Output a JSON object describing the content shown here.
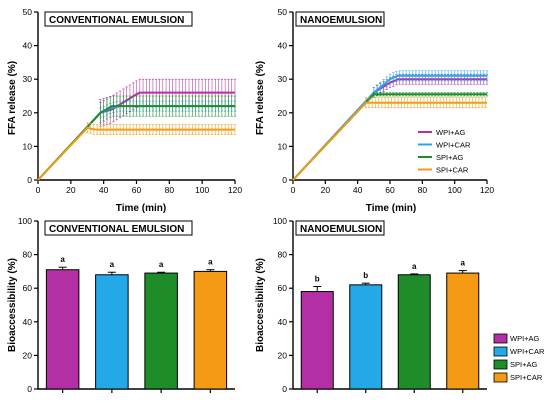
{
  "colors": {
    "WPI+AG": "#b42fa6",
    "WPI+CAR": "#23a8e8",
    "SPI+AG": "#1f8c2a",
    "SPI+CAR": "#f59a15"
  },
  "chart_data": [
    {
      "type": "line",
      "title": "CONVENTIONAL EMULSION",
      "xlabel": "Time (min)",
      "ylabel": "FFA release (%)",
      "xlim": [
        0,
        120
      ],
      "ylim": [
        0,
        50
      ],
      "xticks": [
        0,
        20,
        40,
        60,
        80,
        100,
        120
      ],
      "yticks": [
        0,
        10,
        20,
        30,
        40,
        50
      ],
      "series": [
        {
          "name": "WPI+AG",
          "x": [
            0,
            38,
            45,
            50,
            55,
            60,
            62,
            70,
            80,
            90,
            100,
            110,
            120
          ],
          "y": [
            0,
            20,
            21,
            22.5,
            24,
            25.5,
            26,
            26,
            26,
            26,
            26,
            26,
            26
          ],
          "err": 4
        },
        {
          "name": "WPI+CAR",
          "x": [
            0,
            38,
            45,
            50,
            55,
            60,
            62,
            70,
            80,
            90,
            100,
            110,
            120
          ],
          "y": [
            0,
            20,
            21.5,
            22,
            22,
            22,
            22,
            22,
            22,
            22,
            22,
            22,
            22
          ],
          "err": 1.5
        },
        {
          "name": "SPI+AG",
          "x": [
            0,
            38,
            45,
            50,
            55,
            60,
            62,
            70,
            80,
            90,
            100,
            110,
            120
          ],
          "y": [
            0,
            20,
            22,
            22,
            22,
            22,
            22,
            22,
            22,
            22,
            22,
            22,
            22
          ],
          "err": 3
        },
        {
          "name": "SPI+CAR",
          "x": [
            0,
            30,
            35,
            40,
            50,
            60,
            70,
            80,
            90,
            100,
            110,
            120
          ],
          "y": [
            0,
            15.5,
            15,
            15,
            15,
            15,
            15,
            15,
            15,
            15,
            15,
            15
          ],
          "err": 1.5
        }
      ]
    },
    {
      "type": "line",
      "title": "NANOEMULSION",
      "xlabel": "Time (min)",
      "ylabel": "FFA release (%)",
      "xlim": [
        0,
        120
      ],
      "ylim": [
        0,
        50
      ],
      "xticks": [
        0,
        20,
        40,
        60,
        80,
        100,
        120
      ],
      "yticks": [
        0,
        10,
        20,
        30,
        40,
        50
      ],
      "legend": [
        "WPI+AG",
        "WPI+CAR",
        "SPI+AG",
        "SPI+CAR"
      ],
      "legend_position": "right",
      "series": [
        {
          "name": "WPI+AG",
          "x": [
            0,
            50,
            55,
            60,
            65,
            70,
            80,
            90,
            100,
            110,
            120
          ],
          "y": [
            0,
            26,
            27.5,
            29,
            30,
            30,
            30,
            30,
            30,
            30,
            30
          ],
          "err": 1.5
        },
        {
          "name": "WPI+CAR",
          "x": [
            0,
            50,
            55,
            60,
            65,
            70,
            80,
            90,
            100,
            110,
            120
          ],
          "y": [
            0,
            26,
            28,
            30,
            31,
            31,
            31,
            31,
            31,
            31,
            31
          ],
          "err": 1.5
        },
        {
          "name": "SPI+AG",
          "x": [
            0,
            50,
            55,
            60,
            70,
            80,
            90,
            100,
            110,
            120
          ],
          "y": [
            0,
            25.5,
            25.5,
            25.5,
            25.5,
            25.5,
            25.5,
            25.5,
            25.5,
            25.5
          ],
          "err": 0.5
        },
        {
          "name": "SPI+CAR",
          "x": [
            0,
            45,
            50,
            60,
            70,
            80,
            90,
            100,
            110,
            120
          ],
          "y": [
            0,
            23,
            23,
            23,
            23,
            23,
            23,
            23,
            23,
            23
          ],
          "err": 1.5
        }
      ]
    },
    {
      "type": "bar",
      "title": "CONVENTIONAL EMULSION",
      "xlabel": "",
      "ylabel": "Bioaccessibility (%)",
      "ylim": [
        0,
        100
      ],
      "yticks": [
        0,
        20,
        40,
        60,
        80,
        100
      ],
      "categories": [
        "WPI+AG",
        "WPI+CAR",
        "SPI+AG",
        "SPI+CAR"
      ],
      "values": [
        71,
        68,
        69,
        70
      ],
      "errors": [
        1.5,
        1.5,
        0.5,
        1
      ],
      "labels": [
        "a",
        "a",
        "a",
        "a"
      ]
    },
    {
      "type": "bar",
      "title": "NANOEMULSION",
      "xlabel": "",
      "ylabel": "Bioaccessibility (%)",
      "ylim": [
        0,
        100
      ],
      "yticks": [
        0,
        20,
        40,
        60,
        80,
        100
      ],
      "categories": [
        "WPI+AG",
        "WPI+CAR",
        "SPI+AG",
        "SPI+CAR"
      ],
      "values": [
        58,
        62,
        68,
        69
      ],
      "errors": [
        3,
        1,
        0.5,
        1.5
      ],
      "labels": [
        "b",
        "b",
        "a",
        "a"
      ],
      "legend": [
        "WPI+AG",
        "WPI+CAR",
        "SPI+AG",
        "SPI+CAR"
      ],
      "legend_position": "right"
    }
  ]
}
